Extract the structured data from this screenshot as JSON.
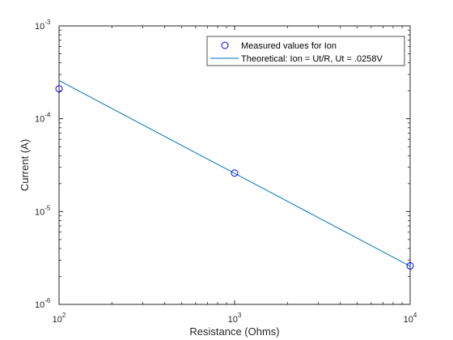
{
  "chart_data": {
    "type": "scatter",
    "xscale": "log",
    "yscale": "log",
    "xlim": [
      100,
      10000
    ],
    "ylim": [
      1e-06,
      0.001
    ],
    "xlabel": "Resistance (Ohms)",
    "ylabel": "Current (A)",
    "x_ticks": [
      {
        "value": 100,
        "base": "10",
        "exp": "2"
      },
      {
        "value": 1000,
        "base": "10",
        "exp": "3"
      },
      {
        "value": 10000,
        "base": "10",
        "exp": "4"
      }
    ],
    "y_ticks": [
      {
        "value": 1e-06,
        "base": "10",
        "exp": "-6"
      },
      {
        "value": 1e-05,
        "base": "10",
        "exp": "-5"
      },
      {
        "value": 0.0001,
        "base": "10",
        "exp": "-4"
      },
      {
        "value": 0.001,
        "base": "10",
        "exp": "-3"
      }
    ],
    "grid": false,
    "legend_position": "top-right",
    "series": [
      {
        "name": "Measured values for Ion",
        "kind": "markers",
        "marker": "circle",
        "color": "#0000ff",
        "points": [
          {
            "x": 100,
            "y": 0.00021
          },
          {
            "x": 1000,
            "y": 2.6e-05
          },
          {
            "x": 10000,
            "y": 2.6e-06
          }
        ]
      },
      {
        "name": "Theoretical: Ion = Ut/R, Ut = .0258V",
        "kind": "line",
        "color": "#0072bd",
        "points": [
          {
            "x": 100,
            "y": 0.000258
          },
          {
            "x": 10000,
            "y": 2.58e-06
          }
        ]
      }
    ]
  }
}
